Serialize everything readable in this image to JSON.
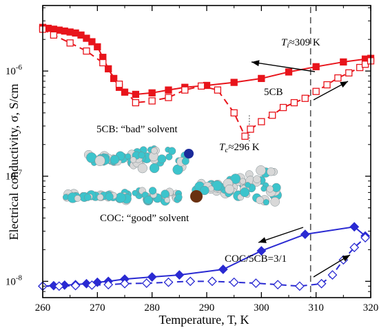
{
  "chart_data": {
    "type": "line",
    "title": "",
    "xlabel": "Temperature, T, K",
    "ylabel": "Electrical conductivity, σ, S/cm",
    "x_scale": "linear",
    "y_scale": "log",
    "xlim": [
      260,
      320
    ],
    "ylim": [
      7e-09,
      4.2e-06
    ],
    "x_ticks": [
      260,
      270,
      280,
      290,
      300,
      310,
      320
    ],
    "x_tick_labels": [
      "260",
      "270",
      "280",
      "290",
      "300",
      "310",
      "320"
    ],
    "y_ticks": [
      1e-08,
      1e-07,
      1e-06
    ],
    "y_tick_labels": [
      "10",
      "10",
      "10"
    ],
    "y_tick_exponents": [
      "-8",
      "-7",
      "-6"
    ],
    "grid": false,
    "vertical_reference_line": 309,
    "annotations": [
      {
        "text": "T",
        "sub": "i",
        "rest": "≈309 K"
      },
      {
        "text": "T",
        "sub": "c",
        "rest": "≈296 K"
      },
      {
        "text": "5CB",
        "sub": "",
        "rest": ""
      },
      {
        "text": "5CB: “bad” solvent",
        "sub": "",
        "rest": ""
      },
      {
        "text": "COC: “good” solvent",
        "sub": "",
        "rest": ""
      },
      {
        "text": "COC/5CB=3/1",
        "sub": "",
        "rest": ""
      }
    ],
    "series": [
      {
        "color": "#e8141b",
        "marker": "filled-square",
        "line": "solid",
        "x": [
          260,
          261,
          262,
          263,
          264,
          265,
          266,
          267,
          268,
          269,
          270,
          271,
          272,
          273,
          274,
          275,
          277,
          280,
          283,
          286,
          290,
          295,
          300,
          305,
          310,
          315,
          319,
          320
        ],
        "y": [
          2.6e-06,
          2.55e-06,
          2.5e-06,
          2.45e-06,
          2.4e-06,
          2.35e-06,
          2.3e-06,
          2.2e-06,
          2.05e-06,
          1.9e-06,
          1.7e-06,
          1.35e-06,
          1.05e-06,
          8.5e-07,
          7e-07,
          6.3e-07,
          6e-07,
          6.2e-07,
          6.6e-07,
          7e-07,
          7.3e-07,
          7.8e-07,
          8.5e-07,
          9.8e-07,
          1.1e-06,
          1.22e-06,
          1.3e-06,
          1.32e-06
        ]
      },
      {
        "color": "#e8141b",
        "marker": "open-square",
        "line": "dashed",
        "x": [
          260,
          262,
          265,
          268,
          271,
          274,
          277,
          280,
          283,
          286,
          289,
          292,
          295,
          297,
          298,
          300,
          302,
          304,
          306,
          308,
          310,
          312,
          314,
          316,
          318,
          319,
          320
        ],
        "y": [
          2.5e-06,
          2.2e-06,
          1.85e-06,
          1.55e-06,
          1.2e-06,
          7.5e-07,
          5e-07,
          5.2e-07,
          5.6e-07,
          6.6e-07,
          7.2e-07,
          6.6e-07,
          4e-07,
          2.4e-07,
          2.8e-07,
          3.3e-07,
          3.8e-07,
          4.5e-07,
          5e-07,
          5.5e-07,
          6.4e-07,
          7.4e-07,
          8.6e-07,
          9.6e-07,
          1.08e-06,
          1.16e-06,
          1.25e-06
        ]
      },
      {
        "color": "#2a2ad2",
        "marker": "filled-diamond",
        "line": "solid",
        "x": [
          260,
          262,
          264,
          266,
          268,
          270,
          272,
          275,
          280,
          285,
          293,
          300,
          308,
          317,
          319
        ],
        "y": [
          9e-09,
          9.1e-09,
          9.2e-09,
          9.3e-09,
          9.5e-09,
          9.8e-09,
          1e-08,
          1.05e-08,
          1.1e-08,
          1.15e-08,
          1.3e-08,
          1.95e-08,
          2.8e-08,
          3.3e-08,
          2.7e-08
        ]
      },
      {
        "color": "#2a2ad2",
        "marker": "open-diamond",
        "line": "dashed",
        "x": [
          260,
          263,
          266,
          269,
          272,
          275,
          279,
          283,
          287,
          291,
          295,
          299,
          303,
          307,
          311,
          313,
          315,
          317,
          319
        ],
        "y": [
          9e-09,
          9e-09,
          9.1e-09,
          9.2e-09,
          9.3e-09,
          9.5e-09,
          9.6e-09,
          9.8e-09,
          1e-08,
          1e-08,
          9.8e-09,
          9.6e-09,
          9.3e-09,
          9e-09,
          9.5e-09,
          1.15e-08,
          1.6e-08,
          2.1e-08,
          2.6e-08
        ]
      }
    ]
  }
}
